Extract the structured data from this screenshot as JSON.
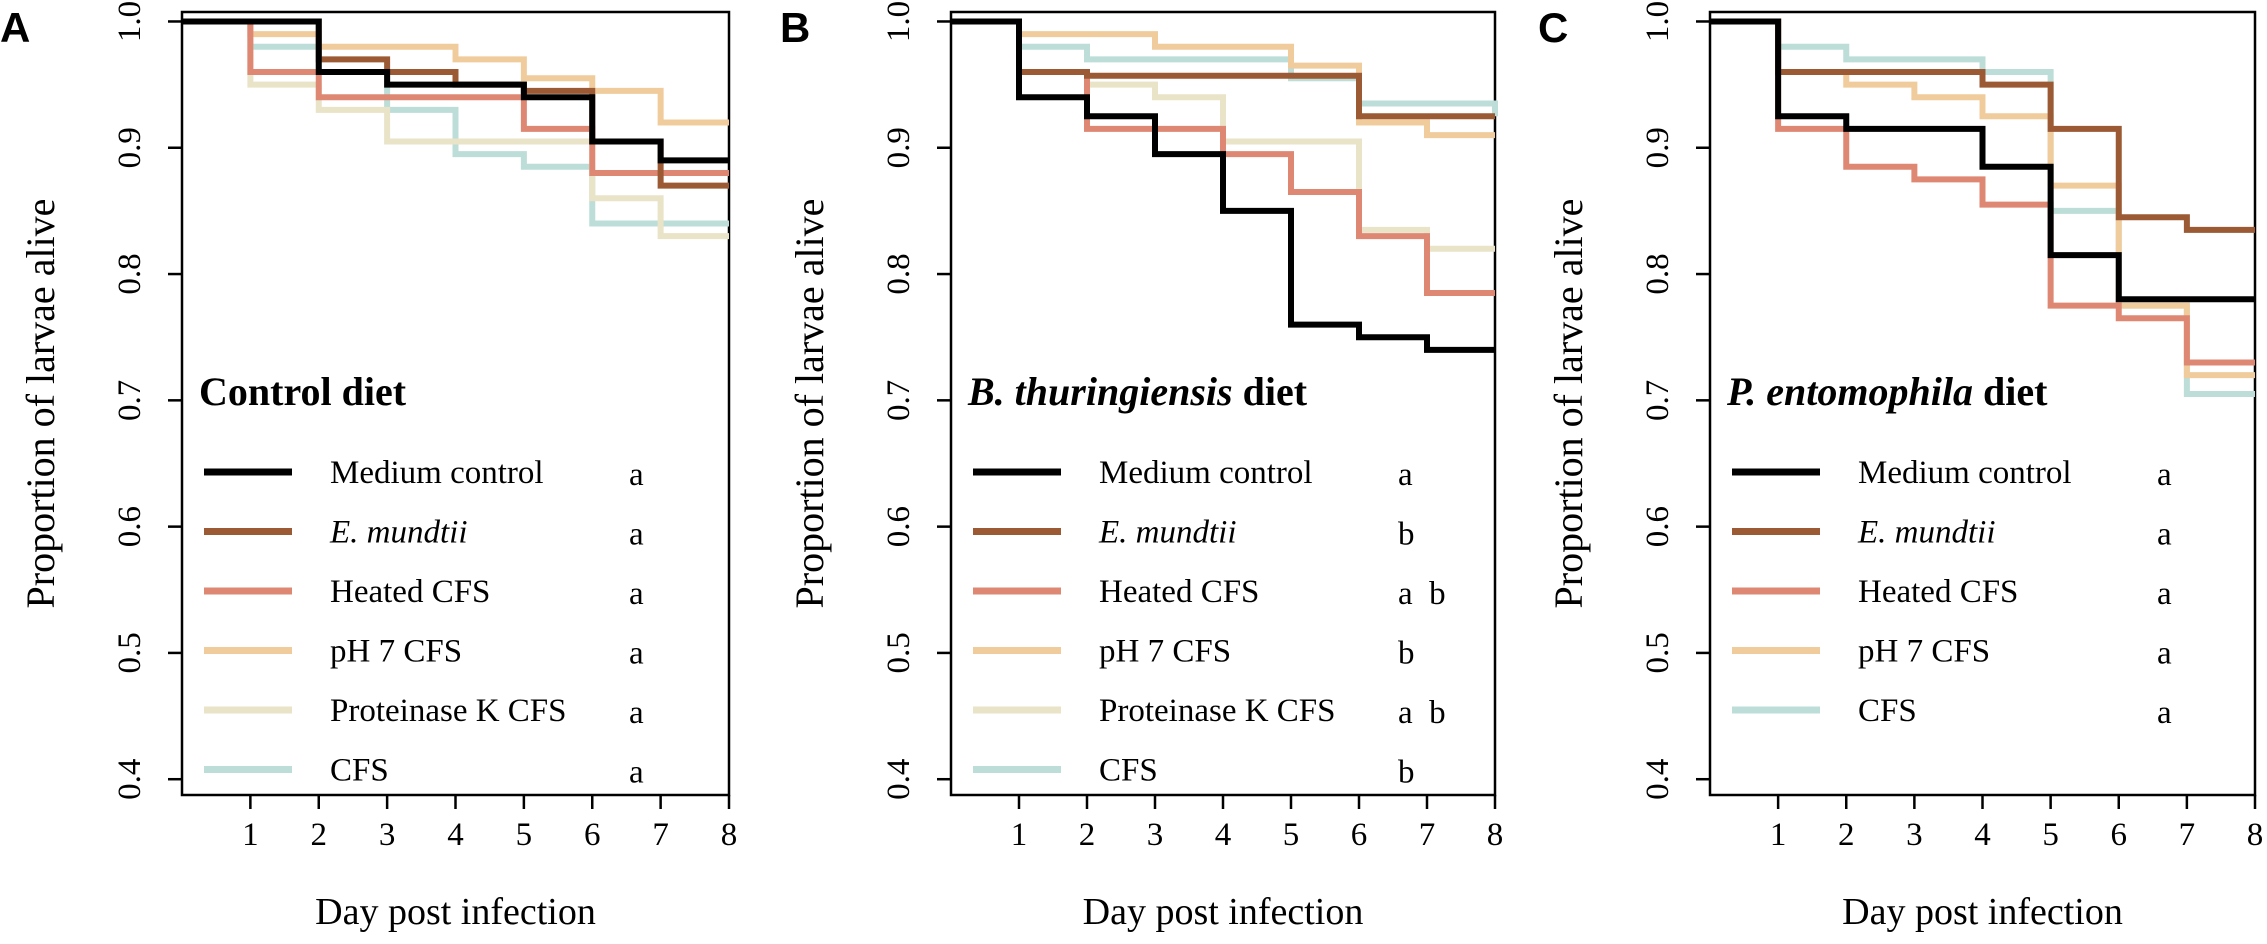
{
  "figure": {
    "panel_labels": [
      "A",
      "B",
      "C"
    ]
  },
  "colors": {
    "Medium control": "#000000",
    "E. mundtii": "#9b5a34",
    "Heated CFS": "#de8874",
    "pH 7 CFS": "#f0cc9c",
    "Proteinase K CFS": "#e9e3c8",
    "CFS": "#bcddd8"
  },
  "chart_data": [
    {
      "type": "line",
      "step": true,
      "panel": "A",
      "title_italic": "",
      "title_plain": "Control diet",
      "xlabel": "Day post infection",
      "ylabel": "Proportion of larvae alive",
      "xlim": [
        0,
        8
      ],
      "ylim": [
        0.4,
        1.0
      ],
      "xticks": [
        1,
        2,
        3,
        4,
        5,
        6,
        7,
        8
      ],
      "yticks": [
        0.4,
        0.5,
        0.6,
        0.7,
        0.8,
        0.9,
        1.0
      ],
      "ytick_labels": [
        "0.4",
        "0.5",
        "0.6",
        "0.7",
        "0.8",
        "0.9",
        "1.0"
      ],
      "series": [
        {
          "name": "Medium control",
          "italic": false,
          "group": "a",
          "x": [
            0,
            2,
            3,
            5,
            6,
            7,
            8
          ],
          "y": [
            1.0,
            0.96,
            0.95,
            0.94,
            0.905,
            0.89,
            0.89
          ]
        },
        {
          "name": "E. mundtii",
          "italic": true,
          "group": "a",
          "x": [
            0,
            2,
            3,
            4,
            5,
            6,
            7,
            8
          ],
          "y": [
            1.0,
            0.97,
            0.96,
            0.95,
            0.945,
            0.905,
            0.87,
            0.87
          ]
        },
        {
          "name": "Heated CFS",
          "italic": false,
          "group": "a",
          "x": [
            0,
            1,
            2,
            5,
            6,
            8
          ],
          "y": [
            1.0,
            0.96,
            0.94,
            0.915,
            0.88,
            0.88
          ]
        },
        {
          "name": "pH 7 CFS",
          "italic": false,
          "group": "a",
          "x": [
            0,
            1,
            2,
            4,
            5,
            6,
            7,
            8
          ],
          "y": [
            1.0,
            0.99,
            0.98,
            0.97,
            0.955,
            0.945,
            0.92,
            0.92
          ]
        },
        {
          "name": "Proteinase K CFS",
          "italic": false,
          "group": "a",
          "x": [
            0,
            1,
            2,
            3,
            6,
            7,
            8
          ],
          "y": [
            1.0,
            0.95,
            0.93,
            0.905,
            0.86,
            0.83,
            0.83
          ]
        },
        {
          "name": "CFS",
          "italic": false,
          "group": "a",
          "x": [
            0,
            1,
            2,
            3,
            4,
            5,
            6,
            8
          ],
          "y": [
            1.0,
            0.98,
            0.96,
            0.93,
            0.895,
            0.885,
            0.84,
            0.84
          ]
        }
      ]
    },
    {
      "type": "line",
      "step": true,
      "panel": "B",
      "title_italic": "B. thuringiensis",
      "title_plain": " diet",
      "xlabel": "Day post infection",
      "ylabel": "Proportion of larvae alive",
      "xlim": [
        0,
        8
      ],
      "ylim": [
        0.4,
        1.0
      ],
      "xticks": [
        1,
        2,
        3,
        4,
        5,
        6,
        7,
        8
      ],
      "yticks": [
        0.4,
        0.5,
        0.6,
        0.7,
        0.8,
        0.9,
        1.0
      ],
      "ytick_labels": [
        "0.4",
        "0.5",
        "0.6",
        "0.7",
        "0.8",
        "0.9",
        "1.0"
      ],
      "series": [
        {
          "name": "Medium control",
          "italic": false,
          "group": "a",
          "x": [
            0,
            1,
            2,
            3,
            4,
            5,
            6,
            7,
            8
          ],
          "y": [
            1.0,
            0.94,
            0.925,
            0.895,
            0.85,
            0.76,
            0.75,
            0.74,
            0.74
          ]
        },
        {
          "name": "E. mundtii",
          "italic": true,
          "group": "b",
          "x": [
            0,
            1,
            2,
            6,
            8
          ],
          "y": [
            1.0,
            0.96,
            0.957,
            0.925,
            0.925
          ]
        },
        {
          "name": "Heated CFS",
          "italic": false,
          "group": "a  b",
          "x": [
            0,
            1,
            2,
            4,
            5,
            6,
            7,
            8
          ],
          "y": [
            1.0,
            0.96,
            0.915,
            0.895,
            0.865,
            0.83,
            0.785,
            0.785
          ]
        },
        {
          "name": "pH 7 CFS",
          "italic": false,
          "group": "b",
          "x": [
            0,
            1,
            3,
            5,
            6,
            7,
            8
          ],
          "y": [
            1.0,
            0.99,
            0.98,
            0.965,
            0.92,
            0.91,
            0.91
          ]
        },
        {
          "name": "Proteinase K CFS",
          "italic": false,
          "group": "a  b",
          "x": [
            0,
            1,
            2,
            3,
            4,
            6,
            7,
            8
          ],
          "y": [
            1.0,
            0.96,
            0.95,
            0.94,
            0.905,
            0.835,
            0.82,
            0.82
          ]
        },
        {
          "name": "CFS",
          "italic": false,
          "group": "b",
          "x": [
            0,
            1,
            2,
            5,
            6,
            8
          ],
          "y": [
            1.0,
            0.98,
            0.97,
            0.955,
            0.935,
            0.925
          ]
        }
      ]
    },
    {
      "type": "line",
      "step": true,
      "panel": "C",
      "title_italic": "P. entomophila",
      "title_plain": " diet",
      "xlabel": "Day post infection",
      "ylabel": "Proportion of larvae alive",
      "xlim": [
        0,
        8
      ],
      "ylim": [
        0.4,
        1.0
      ],
      "xticks": [
        1,
        2,
        3,
        4,
        5,
        6,
        7,
        8
      ],
      "yticks": [
        0.4,
        0.5,
        0.6,
        0.7,
        0.8,
        0.9,
        1.0
      ],
      "ytick_labels": [
        "0.4",
        "0.5",
        "0.6",
        "0.7",
        "0.8",
        "0.9",
        "1.0"
      ],
      "series": [
        {
          "name": "Medium control",
          "italic": false,
          "group": "a",
          "x": [
            0,
            1,
            2,
            4,
            5,
            6,
            8
          ],
          "y": [
            1.0,
            0.925,
            0.915,
            0.885,
            0.815,
            0.78,
            0.78
          ]
        },
        {
          "name": "E. mundtii",
          "italic": true,
          "group": "a",
          "x": [
            0,
            1,
            2,
            4,
            5,
            6,
            7,
            8
          ],
          "y": [
            1.0,
            0.96,
            0.96,
            0.95,
            0.915,
            0.845,
            0.835,
            0.835
          ]
        },
        {
          "name": "Heated CFS",
          "italic": false,
          "group": "a",
          "x": [
            0,
            1,
            2,
            3,
            4,
            5,
            6,
            7,
            8
          ],
          "y": [
            1.0,
            0.915,
            0.885,
            0.875,
            0.855,
            0.775,
            0.765,
            0.73,
            0.73
          ]
        },
        {
          "name": "pH 7 CFS",
          "italic": false,
          "group": "a",
          "x": [
            0,
            1,
            2,
            3,
            4,
            5,
            6,
            7,
            8
          ],
          "y": [
            1.0,
            0.96,
            0.95,
            0.94,
            0.925,
            0.87,
            0.775,
            0.72,
            0.72
          ]
        },
        {
          "name": "CFS",
          "italic": false,
          "group": "a",
          "x": [
            0,
            1,
            2,
            4,
            5,
            6,
            7,
            8
          ],
          "y": [
            1.0,
            0.98,
            0.97,
            0.96,
            0.85,
            0.775,
            0.705,
            0.705
          ]
        }
      ]
    }
  ]
}
